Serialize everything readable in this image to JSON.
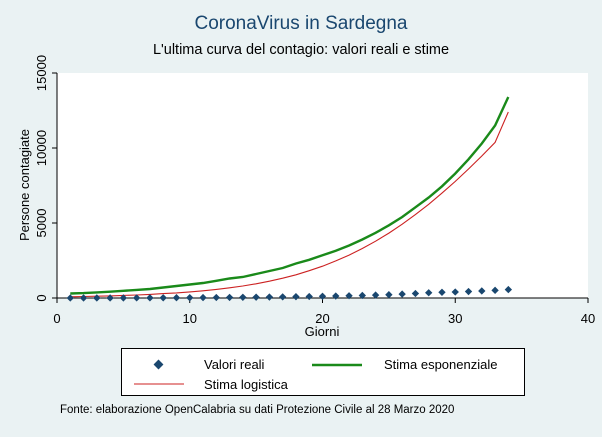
{
  "chart_data": {
    "type": "scatter",
    "title": "CoronaVirus in Sardegna",
    "subtitle": "L'ultima curva del contagio: valori reali e stime",
    "xlabel": "Giorni",
    "ylabel": "Persone contagiate",
    "xlim": [
      0,
      40
    ],
    "ylim": [
      0,
      15000
    ],
    "x_ticks": [
      0,
      10,
      20,
      30,
      40
    ],
    "y_ticks": [
      0,
      5000,
      10000,
      15000
    ],
    "grid": false,
    "legend_position": "bottom",
    "series": [
      {
        "name": "Valori reali",
        "kind": "markers",
        "color": "#1a476f",
        "x": [
          1,
          2,
          3,
          4,
          5,
          6,
          7,
          8,
          9,
          10,
          11,
          12,
          13,
          14,
          15,
          16,
          17,
          18,
          19,
          20,
          21,
          22,
          23,
          24,
          25,
          26,
          27,
          28,
          29,
          30,
          31,
          32,
          33,
          34
        ],
        "y": [
          0,
          1,
          2,
          4,
          6,
          9,
          12,
          15,
          19,
          24,
          29,
          34,
          40,
          47,
          55,
          65,
          75,
          90,
          100,
          115,
          130,
          150,
          170,
          195,
          220,
          260,
          300,
          350,
          380,
          400,
          430,
          470,
          510,
          560
        ]
      },
      {
        "name": "Stima esponenziale",
        "kind": "line",
        "color": "#1a8a1a",
        "x": [
          1,
          2,
          3,
          4,
          5,
          6,
          7,
          8,
          9,
          10,
          11,
          12,
          13,
          14,
          15,
          16,
          17,
          18,
          19,
          20,
          21,
          22,
          23,
          24,
          25,
          26,
          27,
          28,
          29,
          30,
          31,
          32,
          33,
          34
        ],
        "y": [
          300,
          330,
          370,
          420,
          480,
          540,
          600,
          700,
          800,
          900,
          1000,
          1150,
          1300,
          1400,
          1600,
          1800,
          2000,
          2300,
          2550,
          2850,
          3150,
          3500,
          3900,
          4350,
          4850,
          5400,
          6050,
          6700,
          7450,
          8300,
          9250,
          10300,
          11500,
          13400
        ]
      },
      {
        "name": "Stima logistica",
        "kind": "line",
        "color": "#cc2222",
        "x": [
          1,
          2,
          3,
          4,
          5,
          6,
          7,
          8,
          9,
          10,
          11,
          12,
          13,
          14,
          15,
          16,
          17,
          18,
          19,
          20,
          21,
          22,
          23,
          24,
          25,
          26,
          27,
          28,
          29,
          30,
          31,
          32,
          33,
          34
        ],
        "y": [
          80,
          100,
          120,
          140,
          170,
          200,
          240,
          290,
          340,
          410,
          480,
          570,
          680,
          800,
          950,
          1120,
          1320,
          1550,
          1820,
          2120,
          2470,
          2860,
          3300,
          3790,
          4330,
          4920,
          5560,
          6250,
          6990,
          7770,
          8600,
          9470,
          10370,
          12400
        ]
      }
    ]
  },
  "footnote": "Fonte: elaborazione OpenCalabria su dati Protezione Civile al 28 Marzo 2020",
  "colors": {
    "background": "#eaf2f3",
    "plot_area": "#ffffff",
    "title": "#1a476f"
  }
}
